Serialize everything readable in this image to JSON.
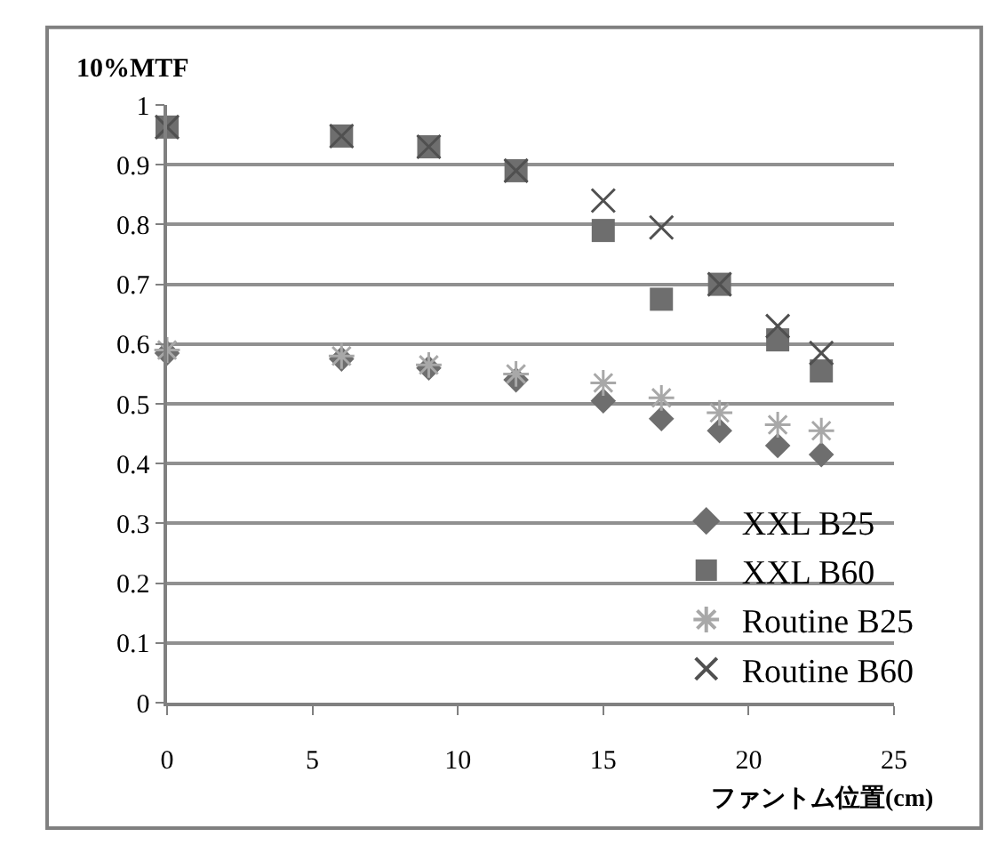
{
  "chart_data": {
    "type": "scatter",
    "ylabel": "10%MTF",
    "xlabel": "ファントム位置(cm)",
    "x": [
      0,
      6,
      9,
      12,
      15,
      17,
      19,
      21,
      22.5
    ],
    "xlim": [
      0,
      25
    ],
    "xticks": [
      0,
      5,
      10,
      15,
      20,
      25
    ],
    "ylim": [
      0,
      1
    ],
    "yticks": [
      0,
      0.1,
      0.2,
      0.3,
      0.4,
      0.5,
      0.6,
      0.7,
      0.8,
      0.9,
      1
    ],
    "grid": "y",
    "legend": "bottom right",
    "series": [
      {
        "name": "XXL B25",
        "color": "#6e6e6e",
        "marker": "diamond",
        "values": [
          0.585,
          0.575,
          0.56,
          0.54,
          0.505,
          0.475,
          0.455,
          0.43,
          0.415
        ]
      },
      {
        "name": "XXL B60",
        "color": "#6e6e6e",
        "marker": "square",
        "values": [
          0.963,
          0.948,
          0.93,
          0.89,
          0.79,
          0.675,
          0.7,
          0.607,
          0.555
        ]
      },
      {
        "name": "Routine B25",
        "color": "#a8a8a8",
        "marker": "cross",
        "values": [
          0.59,
          0.58,
          0.565,
          0.55,
          0.535,
          0.51,
          0.485,
          0.465,
          0.455
        ]
      },
      {
        "name": "Routine B60",
        "color": "#505050",
        "marker": "cross",
        "values": [
          0.963,
          0.948,
          0.93,
          0.89,
          0.84,
          0.795,
          0.7,
          0.63,
          0.585
        ]
      }
    ]
  }
}
